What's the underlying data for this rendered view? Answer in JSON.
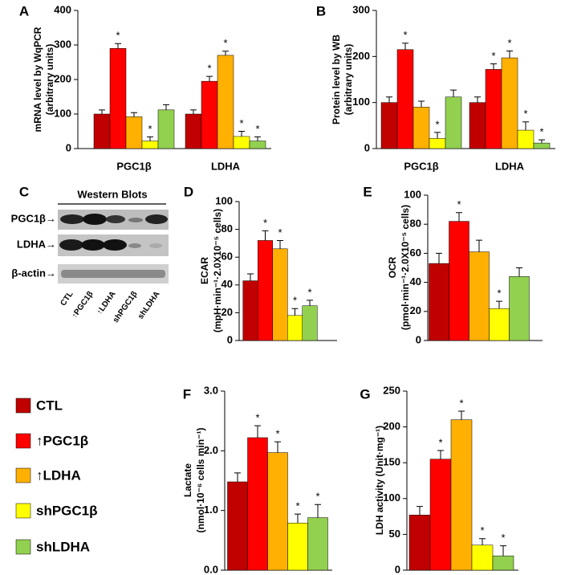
{
  "legend": {
    "items": [
      {
        "name": "CTL",
        "color": "#c00000"
      },
      {
        "name": "↑PGC1β",
        "color": "#ff0000"
      },
      {
        "name": "↑LDHA",
        "color": "#ffb000"
      },
      {
        "name": "shPGC1β",
        "color": "#ffff00"
      },
      {
        "name": "shLDHA",
        "color": "#92d050"
      }
    ]
  },
  "western_blot": {
    "panel": "C",
    "title": "Western Blots",
    "rows": [
      "PGC1β→",
      "LDHA→",
      "β-actin→"
    ],
    "lanes": [
      "CTL",
      "↑PGC1β",
      "↑LDHA",
      "shPGC1β",
      "shLDHA"
    ]
  },
  "chart_data": [
    {
      "type": "bar",
      "panel": "A",
      "ylabel": [
        "mRNA level by WqPCR",
        "(arbitrary units)"
      ],
      "categories": [
        "PGC1β",
        "LDHA"
      ],
      "ylim": [
        0,
        400
      ],
      "yticks": [
        0,
        100,
        200,
        300,
        400
      ],
      "series": [
        {
          "values": [
            100,
            100
          ],
          "errors": [
            12,
            12
          ],
          "annotations": [
            null,
            null
          ]
        },
        {
          "values": [
            290,
            195
          ],
          "errors": [
            14,
            14
          ],
          "annotations": [
            "*",
            "*"
          ]
        },
        {
          "values": [
            92,
            270
          ],
          "errors": [
            12,
            12
          ],
          "annotations": [
            null,
            "*"
          ]
        },
        {
          "values": [
            22,
            35
          ],
          "errors": [
            12,
            15
          ],
          "annotations": [
            "*",
            "*"
          ]
        },
        {
          "values": [
            112,
            22
          ],
          "errors": [
            15,
            12
          ],
          "annotations": [
            null,
            "*"
          ]
        }
      ]
    },
    {
      "type": "bar",
      "panel": "B",
      "ylabel": [
        "Protein level by WB",
        "(arbitrary units)"
      ],
      "categories": [
        "PGC1β",
        "LDHA"
      ],
      "ylim": [
        0,
        300
      ],
      "yticks": [
        0,
        100,
        200,
        300
      ],
      "series": [
        {
          "values": [
            100,
            100
          ],
          "errors": [
            12,
            12
          ],
          "annotations": [
            null,
            null
          ]
        },
        {
          "values": [
            215,
            172
          ],
          "errors": [
            14,
            12
          ],
          "annotations": [
            "*",
            "*"
          ]
        },
        {
          "values": [
            90,
            197
          ],
          "errors": [
            13,
            15
          ],
          "annotations": [
            null,
            "*"
          ]
        },
        {
          "values": [
            22,
            40
          ],
          "errors": [
            13,
            18
          ],
          "annotations": [
            "*",
            "*"
          ]
        },
        {
          "values": [
            112,
            12
          ],
          "errors": [
            15,
            7
          ],
          "annotations": [
            null,
            "*"
          ]
        }
      ]
    },
    {
      "type": "bar",
      "panel": "D",
      "ylabel": [
        "ECAR",
        "(mpH·min⁻¹·2.0X10⁻⁵ cells)"
      ],
      "ylim": [
        0,
        100
      ],
      "yticks": [
        0,
        20,
        40,
        60,
        80,
        100
      ],
      "series": [
        {
          "values": [
            43
          ],
          "errors": [
            5
          ],
          "annotations": [
            null
          ]
        },
        {
          "values": [
            72
          ],
          "errors": [
            7
          ],
          "annotations": [
            "*"
          ]
        },
        {
          "values": [
            66
          ],
          "errors": [
            6
          ],
          "annotations": [
            "*"
          ]
        },
        {
          "values": [
            18
          ],
          "errors": [
            5
          ],
          "annotations": [
            "*"
          ]
        },
        {
          "values": [
            25
          ],
          "errors": [
            4
          ],
          "annotations": [
            "*"
          ]
        }
      ]
    },
    {
      "type": "bar",
      "panel": "E",
      "ylabel": [
        "OCR",
        "(pmol·min⁻¹·2.0X10⁻⁵ cells)"
      ],
      "ylim": [
        0,
        100
      ],
      "yticks": [
        0,
        20,
        40,
        60,
        80,
        100
      ],
      "series": [
        {
          "values": [
            53
          ],
          "errors": [
            7
          ],
          "annotations": [
            null
          ]
        },
        {
          "values": [
            82
          ],
          "errors": [
            6
          ],
          "annotations": [
            "*"
          ]
        },
        {
          "values": [
            61
          ],
          "errors": [
            8
          ],
          "annotations": [
            null
          ]
        },
        {
          "values": [
            22
          ],
          "errors": [
            5
          ],
          "annotations": [
            "*"
          ]
        },
        {
          "values": [
            44
          ],
          "errors": [
            6
          ],
          "annotations": [
            null
          ]
        }
      ]
    },
    {
      "type": "bar",
      "panel": "F",
      "ylabel": [
        "Lactate",
        "(nmol·10⁻⁶ cells min⁻¹)"
      ],
      "ylim": [
        0,
        3
      ],
      "yticks": [
        {
          "value": 0,
          "label": "0.0"
        },
        {
          "value": 1,
          "label": "1.0"
        },
        {
          "value": 2,
          "label": "2.0"
        },
        {
          "value": 3,
          "label": "3.0"
        }
      ],
      "series": [
        {
          "values": [
            1.48
          ],
          "errors": [
            0.15
          ],
          "annotations": [
            null
          ]
        },
        {
          "values": [
            2.22
          ],
          "errors": [
            0.2
          ],
          "annotations": [
            "*"
          ]
        },
        {
          "values": [
            1.97
          ],
          "errors": [
            0.18
          ],
          "annotations": [
            "*"
          ]
        },
        {
          "values": [
            0.79
          ],
          "errors": [
            0.15
          ],
          "annotations": [
            "*"
          ]
        },
        {
          "values": [
            0.88
          ],
          "errors": [
            0.22
          ],
          "annotations": [
            "*"
          ]
        }
      ]
    },
    {
      "type": "bar",
      "panel": "G",
      "ylabel": [
        "LDH activity (Unit·mg⁻¹)"
      ],
      "ylim": [
        0,
        250
      ],
      "yticks": [
        0,
        50,
        100,
        150,
        200,
        250
      ],
      "series": [
        {
          "values": [
            77
          ],
          "errors": [
            12
          ],
          "annotations": [
            null
          ]
        },
        {
          "values": [
            155
          ],
          "errors": [
            12
          ],
          "annotations": [
            "*"
          ]
        },
        {
          "values": [
            210
          ],
          "errors": [
            12
          ],
          "annotations": [
            "*"
          ]
        },
        {
          "values": [
            35
          ],
          "errors": [
            9
          ],
          "annotations": [
            "*"
          ]
        },
        {
          "values": [
            20
          ],
          "errors": [
            14
          ],
          "annotations": [
            "*"
          ]
        }
      ]
    }
  ]
}
